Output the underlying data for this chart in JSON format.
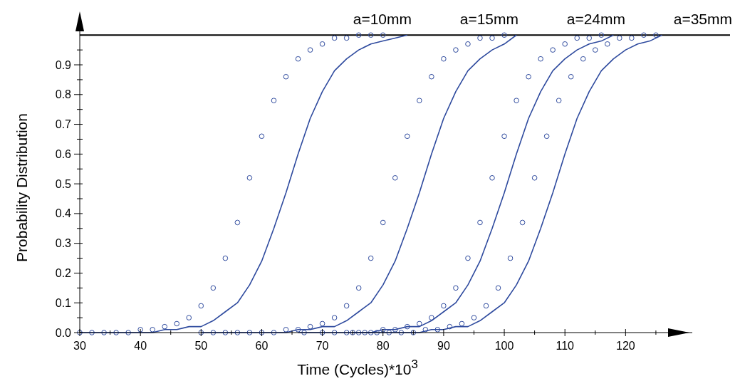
{
  "chart_data": {
    "type": "line",
    "xlabel": "Time (Cycles)*10$^{3}$",
    "ylabel": "Probability Distribution",
    "annotations": [
      "a=10mm",
      "a=15mm",
      "a=24mm",
      "a=35mm"
    ],
    "xlim": [
      30,
      131
    ],
    "ylim": [
      0,
      1.07
    ],
    "xticks": [
      30,
      {
        "value": 35,
        "label": null
      },
      40,
      {
        "value": 45,
        "label": null
      },
      50,
      {
        "value": 55,
        "label": null
      },
      60,
      {
        "value": 65,
        "label": null
      },
      70,
      {
        "value": 75,
        "label": null
      },
      80,
      {
        "value": 85,
        "label": null
      },
      90,
      {
        "value": 95,
        "label": null
      },
      100,
      {
        "value": 105,
        "label": null
      },
      110,
      {
        "value": 115,
        "label": null
      },
      120,
      {
        "value": 125,
        "label": null
      }
    ],
    "yticks": [
      {
        "value": 0,
        "label": "0.0"
      },
      {
        "value": 0.05,
        "label": null
      },
      0.1,
      {
        "value": 0.15,
        "label": null
      },
      0.2,
      {
        "value": 0.25,
        "label": null
      },
      0.3,
      {
        "value": 0.35,
        "label": null
      },
      0.4,
      {
        "value": 0.45,
        "label": null
      },
      0.5,
      {
        "value": 0.55,
        "label": null
      },
      0.6,
      {
        "value": 0.65,
        "label": null
      },
      0.7,
      {
        "value": 0.75,
        "label": null
      },
      0.8,
      {
        "value": 0.85,
        "label": null
      },
      0.9,
      {
        "value": 0.95,
        "label": null
      }
    ],
    "ref_lines": [
      {
        "axis": "y",
        "value": 1,
        "label": null,
        "color": "#000000"
      }
    ],
    "grid": false,
    "series": [
      {
        "type": "scatter",
        "marker": "circle",
        "color": "#2e4a9e",
        "x": [
          30,
          32,
          34,
          36,
          38,
          40,
          42,
          44,
          46,
          48,
          50,
          52,
          54,
          56,
          58,
          60,
          62,
          64,
          66,
          68,
          70,
          72,
          74,
          76,
          78,
          80
        ],
        "values": [
          0,
          0,
          0,
          0,
          0,
          0.01,
          0.01,
          0.02,
          0.03,
          0.05,
          0.09,
          0.15,
          0.25,
          0.37,
          0.52,
          0.66,
          0.78,
          0.86,
          0.92,
          0.95,
          0.97,
          0.99,
          0.99,
          1.0,
          1.0,
          1.0
        ]
      },
      {
        "color": "#2e4a9e",
        "x": [
          30,
          32,
          34,
          36,
          38,
          40,
          42,
          44,
          46,
          48,
          50,
          52,
          54,
          56,
          58,
          60,
          62,
          64,
          66,
          68,
          70,
          72,
          74,
          76,
          78,
          80,
          82,
          84
        ],
        "values": [
          0,
          0,
          0,
          0,
          0,
          0,
          0,
          0.01,
          0.01,
          0.02,
          0.02,
          0.04,
          0.07,
          0.1,
          0.16,
          0.24,
          0.35,
          0.47,
          0.6,
          0.72,
          0.81,
          0.88,
          0.92,
          0.95,
          0.97,
          0.98,
          0.99,
          1.0
        ]
      },
      {
        "type": "scatter",
        "marker": "circle",
        "color": "#2e4a9e",
        "x": [
          50,
          52,
          54,
          56,
          58,
          60,
          62,
          64,
          66,
          68,
          70,
          72,
          74,
          76,
          78,
          80,
          82,
          84,
          86,
          88,
          90,
          92,
          94,
          96,
          98,
          100
        ],
        "values": [
          0,
          0,
          0,
          0,
          0,
          0,
          0,
          0.01,
          0.01,
          0.02,
          0.03,
          0.05,
          0.09,
          0.15,
          0.25,
          0.37,
          0.52,
          0.66,
          0.78,
          0.86,
          0.92,
          0.95,
          0.97,
          0.99,
          0.99,
          1.0
        ]
      },
      {
        "color": "#2e4a9e",
        "x": [
          50,
          52,
          54,
          56,
          58,
          60,
          62,
          64,
          66,
          68,
          70,
          72,
          74,
          76,
          78,
          80,
          82,
          84,
          86,
          88,
          90,
          92,
          94,
          96,
          98,
          100,
          102
        ],
        "values": [
          0,
          0,
          0,
          0,
          0,
          0,
          0,
          0,
          0.01,
          0.01,
          0.02,
          0.02,
          0.04,
          0.07,
          0.1,
          0.16,
          0.24,
          0.35,
          0.47,
          0.6,
          0.72,
          0.81,
          0.88,
          0.92,
          0.95,
          0.97,
          1.0
        ]
      },
      {
        "type": "scatter",
        "marker": "circle",
        "color": "#2e4a9e",
        "x": [
          67,
          70,
          72,
          74,
          76,
          78,
          80,
          82,
          84,
          86,
          88,
          90,
          92,
          94,
          96,
          98,
          100,
          102,
          104,
          106,
          108,
          110,
          112,
          114,
          116
        ],
        "values": [
          0,
          0,
          0,
          0,
          0,
          0,
          0.01,
          0.01,
          0.02,
          0.03,
          0.05,
          0.09,
          0.15,
          0.25,
          0.37,
          0.52,
          0.66,
          0.78,
          0.86,
          0.92,
          0.95,
          0.97,
          0.99,
          0.99,
          1.0
        ]
      },
      {
        "color": "#2e4a9e",
        "x": [
          66,
          68,
          70,
          72,
          74,
          76,
          78,
          80,
          82,
          84,
          86,
          88,
          90,
          92,
          94,
          96,
          98,
          100,
          102,
          104,
          106,
          108,
          110,
          112,
          114,
          116,
          118
        ],
        "values": [
          0,
          0,
          0,
          0,
          0,
          0,
          0,
          0.01,
          0.01,
          0.02,
          0.02,
          0.04,
          0.07,
          0.1,
          0.16,
          0.24,
          0.35,
          0.47,
          0.6,
          0.72,
          0.81,
          0.88,
          0.92,
          0.95,
          0.97,
          0.98,
          1.0
        ]
      },
      {
        "type": "scatter",
        "marker": "circle",
        "color": "#2e4a9e",
        "x": [
          75,
          77,
          79,
          81,
          83,
          85,
          87,
          89,
          91,
          93,
          95,
          97,
          99,
          101,
          103,
          105,
          107,
          109,
          111,
          113,
          115,
          117,
          119,
          121,
          123,
          125
        ],
        "values": [
          0,
          0,
          0,
          0,
          0,
          0,
          0.01,
          0.01,
          0.02,
          0.03,
          0.05,
          0.09,
          0.15,
          0.25,
          0.37,
          0.52,
          0.66,
          0.78,
          0.86,
          0.92,
          0.95,
          0.97,
          0.99,
          0.99,
          1.0,
          1.0
        ]
      },
      {
        "color": "#2e4a9e",
        "x": [
          75,
          76,
          78,
          80,
          82,
          84,
          86,
          88,
          90,
          92,
          94,
          96,
          98,
          100,
          102,
          104,
          106,
          108,
          110,
          112,
          114,
          116,
          118,
          120,
          122,
          124,
          126
        ],
        "values": [
          0,
          0,
          0,
          0,
          0,
          0,
          0,
          0.01,
          0.01,
          0.02,
          0.02,
          0.04,
          0.07,
          0.1,
          0.16,
          0.24,
          0.35,
          0.47,
          0.6,
          0.72,
          0.81,
          0.88,
          0.92,
          0.95,
          0.97,
          0.98,
          1.0
        ]
      }
    ]
  }
}
